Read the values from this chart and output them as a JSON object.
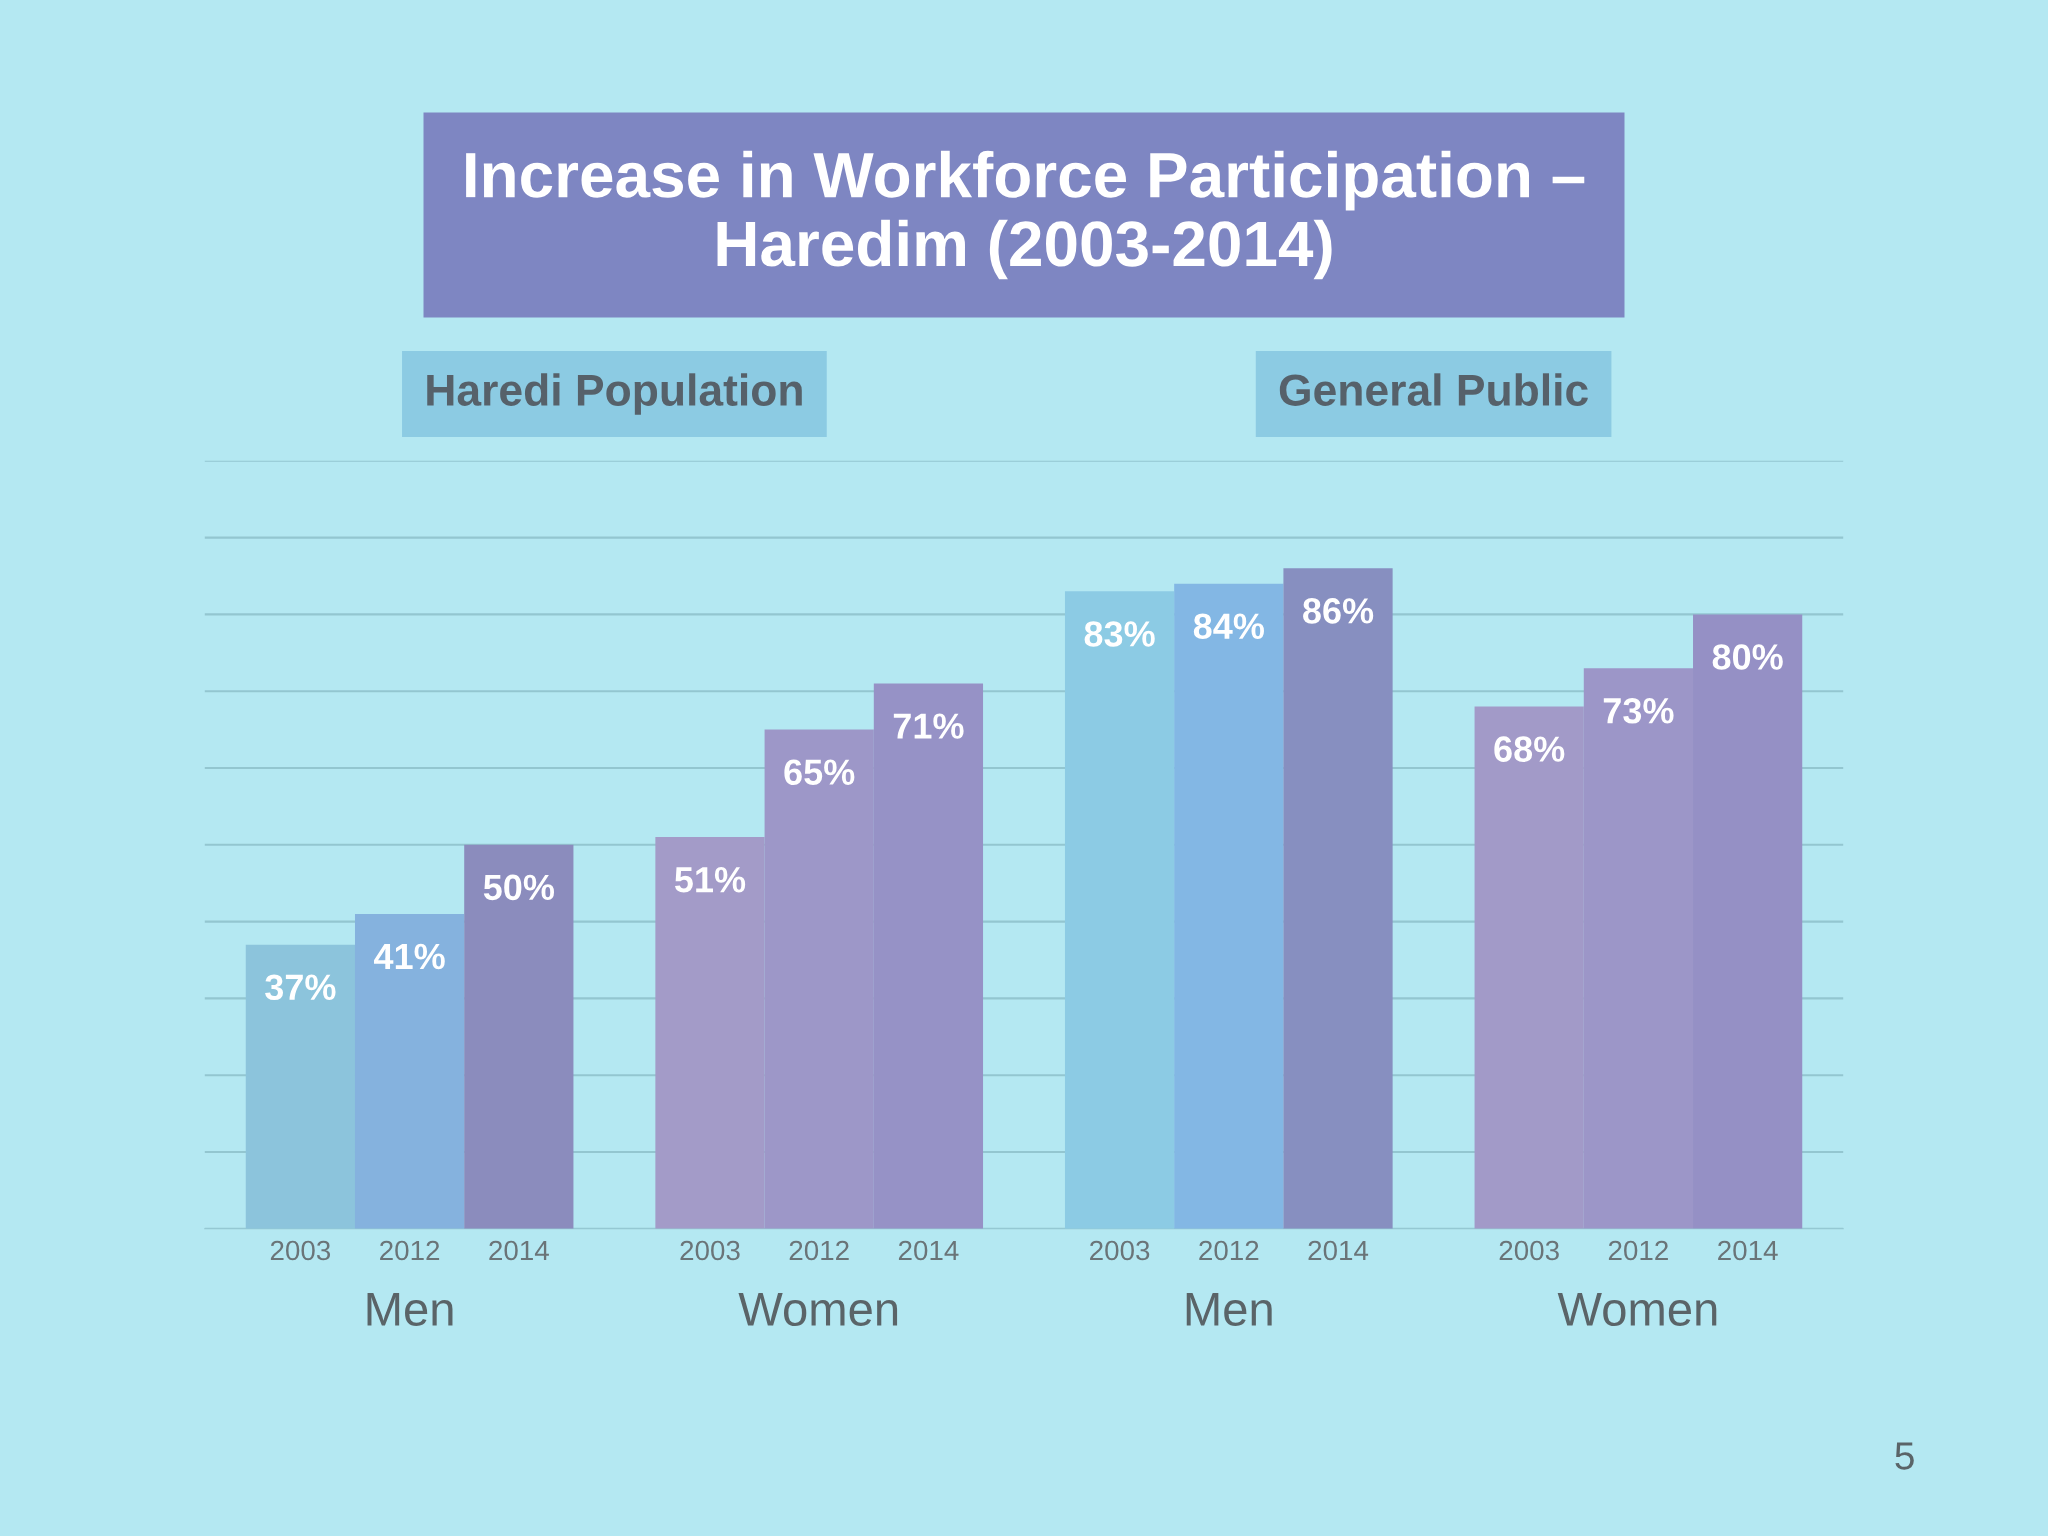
{
  "chart_data": {
    "type": "bar",
    "title": "Increase in Workforce Participation –\nHaredim (2003-2014)",
    "categories": [
      "Men",
      "Women",
      "Men",
      "Women"
    ],
    "series": [
      {
        "name": "2003",
        "colors": [
          "#8cc4dc",
          "#a39bc8",
          "#8ccbe4",
          "#a29ac8"
        ],
        "values": [
          37,
          51,
          83,
          68
        ],
        "value_labels": [
          "37%",
          "51%",
          "83%",
          "68%"
        ]
      },
      {
        "name": "2012",
        "colors": [
          "#85b2de",
          "#9d97c8",
          "#83b7e4",
          "#9c96c8"
        ],
        "values": [
          41,
          65,
          84,
          73
        ],
        "value_labels": [
          "41%",
          "65%",
          "84%",
          "73%"
        ]
      },
      {
        "name": "2014",
        "colors": [
          "#8b8cbd",
          "#9692c6",
          "#878fc0",
          "#9590c5"
        ],
        "values": [
          50,
          71,
          86,
          80
        ],
        "value_labels": [
          "50%",
          "71%",
          "86%",
          "80%"
        ]
      }
    ],
    "ylim": [
      0,
      100
    ],
    "yticks": [
      {
        "value": 0,
        "label": null
      },
      {
        "value": 10,
        "label": null
      },
      {
        "value": 20,
        "label": null
      },
      {
        "value": 30,
        "label": null
      },
      {
        "value": 40,
        "label": null
      },
      {
        "value": 50,
        "label": null
      },
      {
        "value": 60,
        "label": null
      },
      {
        "value": 70,
        "label": null
      },
      {
        "value": 80,
        "label": null
      },
      {
        "value": 90,
        "label": null
      },
      {
        "value": 100,
        "label": null
      }
    ],
    "tick_labels": "x",
    "grid": "y",
    "annotations": [
      "Haredi Population",
      "General Public",
      "5"
    ]
  }
}
